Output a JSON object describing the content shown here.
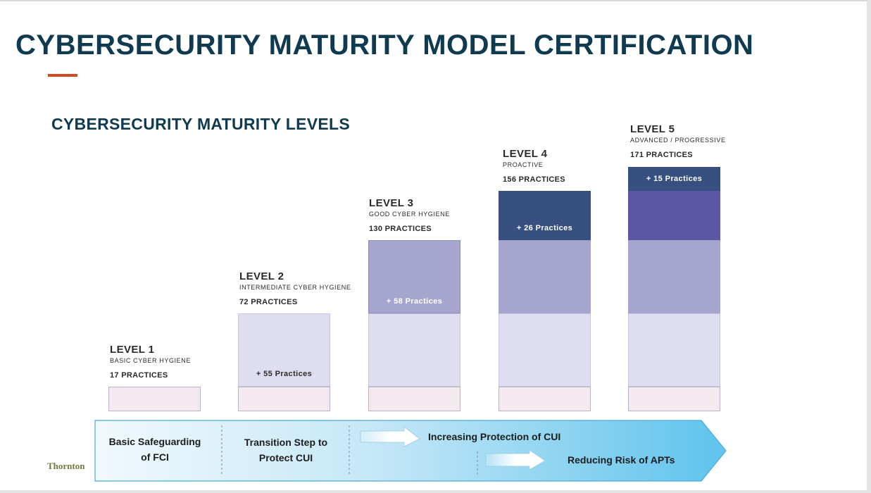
{
  "title": "CYBERSECURITY MATURITY MODEL CERTIFICATION",
  "subtitle": "CYBERSECURITY MATURITY LEVELS",
  "colors": {
    "title": "#0f3a4f",
    "accent": "#d24a22",
    "level1_block": "#f3e9ee",
    "level2_block": "#dfdef0",
    "level3_block": "#a6a5cd",
    "level4_block": "#5d56a3",
    "level5_block": "#37507f",
    "arrow_light": "#f1f9fd",
    "arrow_dark": "#6ac7ec"
  },
  "levels": [
    {
      "name": "LEVEL 1",
      "description": "BASIC CYBER HYGIENE",
      "practices": "17 PRACTICES",
      "added": ""
    },
    {
      "name": "LEVEL 2",
      "description": "INTERMEDIATE  CYBER  HYGIENE",
      "practices": "72 PRACTICES",
      "added": "+ 55 Practices"
    },
    {
      "name": "LEVEL 3",
      "description": "GOOD CYBER  HYGIENE",
      "practices": "130 PRACTICES",
      "added": "+ 58 Practices"
    },
    {
      "name": "LEVEL 4",
      "description": "PROACTIVE",
      "practices": "156 PRACTICES",
      "added": "+ 26 Practices"
    },
    {
      "name": "LEVEL 5",
      "description": "ADVANCED  /  PROGRESSIVE",
      "practices": "171 PRACTICES",
      "added": "+ 15 Practices"
    }
  ],
  "arrow": {
    "stage1": "Basic Safeguarding\nof FCI",
    "stage2": "Transition Step to\nProtect CUI",
    "stage3": "Increasing Protection of CUI",
    "stage4": "Reducing Risk of APTs"
  },
  "logo_text": "Thornton"
}
